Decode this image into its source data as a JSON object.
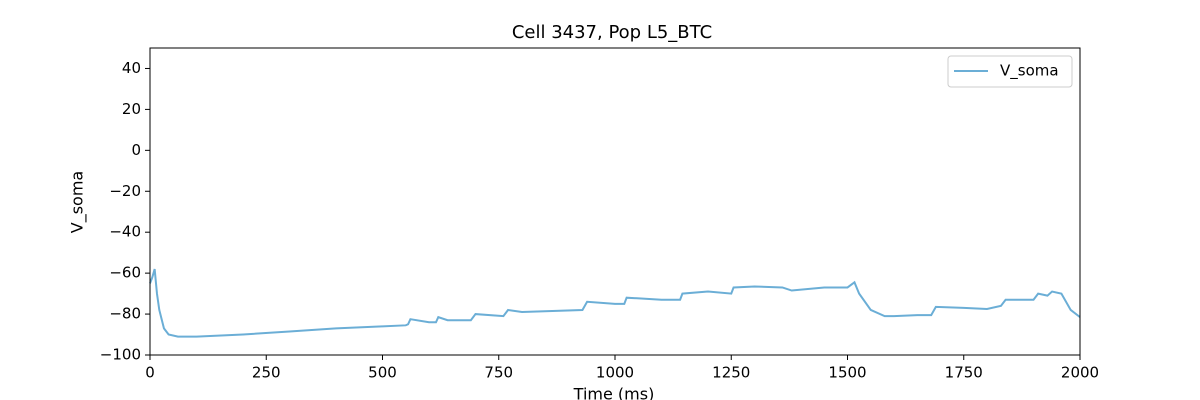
{
  "chart_data": {
    "type": "line",
    "title": "Cell 3437, Pop L5_BTC",
    "x_label": "Time (ms)",
    "y_label": "V_soma",
    "x": [
      0,
      5,
      10,
      15,
      20,
      30,
      40,
      60,
      100,
      200,
      300,
      400,
      500,
      550,
      555,
      560,
      600,
      615,
      620,
      640,
      690,
      700,
      760,
      770,
      800,
      930,
      940,
      1000,
      1020,
      1025,
      1100,
      1140,
      1145,
      1200,
      1250,
      1255,
      1300,
      1360,
      1380,
      1450,
      1500,
      1515,
      1525,
      1550,
      1580,
      1600,
      1650,
      1680,
      1690,
      1750,
      1800,
      1830,
      1840,
      1900,
      1910,
      1930,
      1940,
      1960,
      1980,
      2000
    ],
    "series": [
      {
        "name": "V_soma",
        "color": "#6baed6",
        "values": [
          -65,
          -62,
          -58,
          -70,
          -78,
          -87,
          -90,
          -91,
          -91,
          -90,
          -88.5,
          -87,
          -86,
          -85.5,
          -85,
          -82.5,
          -84,
          -84,
          -81.5,
          -83,
          -83,
          -80,
          -81,
          -78,
          -79,
          -78,
          -74,
          -75,
          -75,
          -72,
          -73,
          -73,
          -70,
          -69,
          -70,
          -67,
          -66.5,
          -67,
          -68.5,
          -67,
          -67,
          -64.5,
          -70,
          -78,
          -81,
          -81,
          -80.5,
          -80.5,
          -76.5,
          -77,
          -77.5,
          -76,
          -73,
          -73,
          -70,
          -71,
          -69,
          -70,
          -78,
          -81.5
        ]
      }
    ],
    "xlim": [
      0,
      2000
    ],
    "ylim": [
      -100,
      50
    ],
    "xticks": [
      0,
      250,
      500,
      750,
      1000,
      1250,
      1500,
      1750,
      2000
    ],
    "yticks": [
      {
        "value": -100,
        "label": "−100"
      },
      {
        "value": -80,
        "label": "−80"
      },
      {
        "value": -60,
        "label": "−60"
      },
      {
        "value": -40,
        "label": "−40"
      },
      {
        "value": -20,
        "label": "−20"
      },
      0,
      20,
      40
    ],
    "legend": "upper right",
    "grid": false
  }
}
